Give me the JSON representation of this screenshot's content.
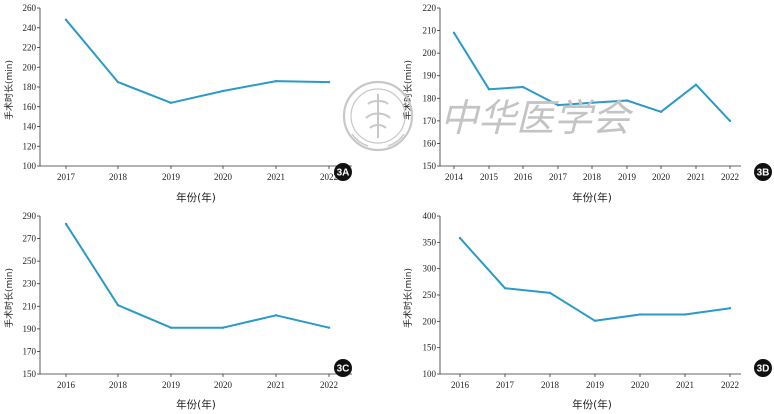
{
  "colors": {
    "line": "#2b9ac8",
    "axis": "#333333",
    "badge": "#111111",
    "watermark": "#c4c4c4"
  },
  "watermark": {
    "text": "中华医学会",
    "icon": "chinese-medical-association-seal-icon"
  },
  "chart_data": [
    {
      "type": "line",
      "panel": "3A",
      "xlabel": "年份(年)",
      "ylabel": "手术时长(min)",
      "categories": [
        "2017",
        "2018",
        "2019",
        "2020",
        "2021",
        "2022"
      ],
      "series": [
        {
          "values": [
            248,
            185,
            164,
            176,
            186,
            185
          ]
        }
      ],
      "yticks": [
        "100",
        "120",
        "140",
        "160",
        "180",
        "200",
        "220",
        "240",
        "260"
      ],
      "ylim": [
        100,
        260
      ]
    },
    {
      "type": "line",
      "panel": "3B",
      "xlabel": "年份(年)",
      "ylabel": "手术时长(min)",
      "categories": [
        "2014",
        "2015",
        "2016",
        "2017",
        "2018",
        "2019",
        "2020",
        "2021",
        "2022"
      ],
      "series": [
        {
          "values": [
            209,
            184,
            185,
            177,
            178,
            179,
            174,
            186,
            170
          ]
        }
      ],
      "yticks": [
        "150",
        "160",
        "170",
        "180",
        "190",
        "200",
        "210",
        "220"
      ],
      "ylim": [
        150,
        220
      ]
    },
    {
      "type": "line",
      "panel": "3C",
      "xlabel": "年份(年)",
      "ylabel": "手术时长(min)",
      "categories": [
        "2016",
        "2018",
        "2019",
        "2020",
        "2021",
        "2022"
      ],
      "series": [
        {
          "values": [
            283,
            211,
            191,
            191,
            202,
            191
          ]
        }
      ],
      "yticks": [
        "150",
        "170",
        "190",
        "210",
        "230",
        "250",
        "270",
        "290"
      ],
      "ylim": [
        150,
        290
      ]
    },
    {
      "type": "line",
      "panel": "3D",
      "xlabel": "年份(年)",
      "ylabel": "手术时长(min)",
      "categories": [
        "2016",
        "2017",
        "2018",
        "2019",
        "2020",
        "2021",
        "2022"
      ],
      "series": [
        {
          "values": [
            358,
            263,
            254,
            201,
            213,
            213,
            225
          ]
        }
      ],
      "yticks": [
        "100",
        "150",
        "200",
        "250",
        "300",
        "350",
        "400"
      ],
      "ylim": [
        100,
        400
      ]
    }
  ]
}
